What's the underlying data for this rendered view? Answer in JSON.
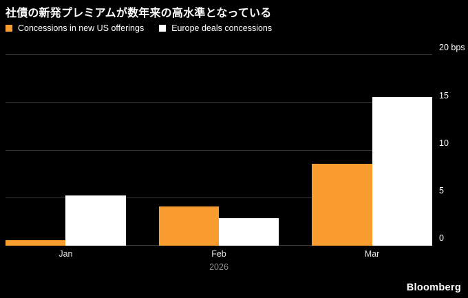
{
  "header": {
    "title": "社債の新発プレミアムが数年来の高水準となっている"
  },
  "legend": [
    {
      "label": "Concessions in new US offerings",
      "color": "#F89C30"
    },
    {
      "label": "Europe deals concessions",
      "color": "#FFFFFF"
    }
  ],
  "chart_data": {
    "type": "bar",
    "title": "社債の新発プレミアムが数年来の高水準となっている",
    "categories": [
      "Jan",
      "Feb",
      "Mar"
    ],
    "series": [
      {
        "name": "Concessions in new US offerings",
        "color": "#F89C30",
        "values": [
          0.6,
          4.1,
          8.6
        ]
      },
      {
        "name": "Europe deals concessions",
        "color": "#FFFFFF",
        "values": [
          5.3,
          2.9,
          15.6
        ]
      }
    ],
    "xlabel": "2026",
    "ylabel": "",
    "unit": "bps",
    "ylim": [
      0,
      20
    ],
    "yticks": [
      0,
      5,
      10,
      15,
      20
    ],
    "ytick_labels": [
      "0",
      "5",
      "10",
      "15",
      "20 bps"
    ],
    "grid": true,
    "legend_position": "top",
    "y_axis_side": "right"
  },
  "footer": {
    "brand": "Bloomberg"
  }
}
